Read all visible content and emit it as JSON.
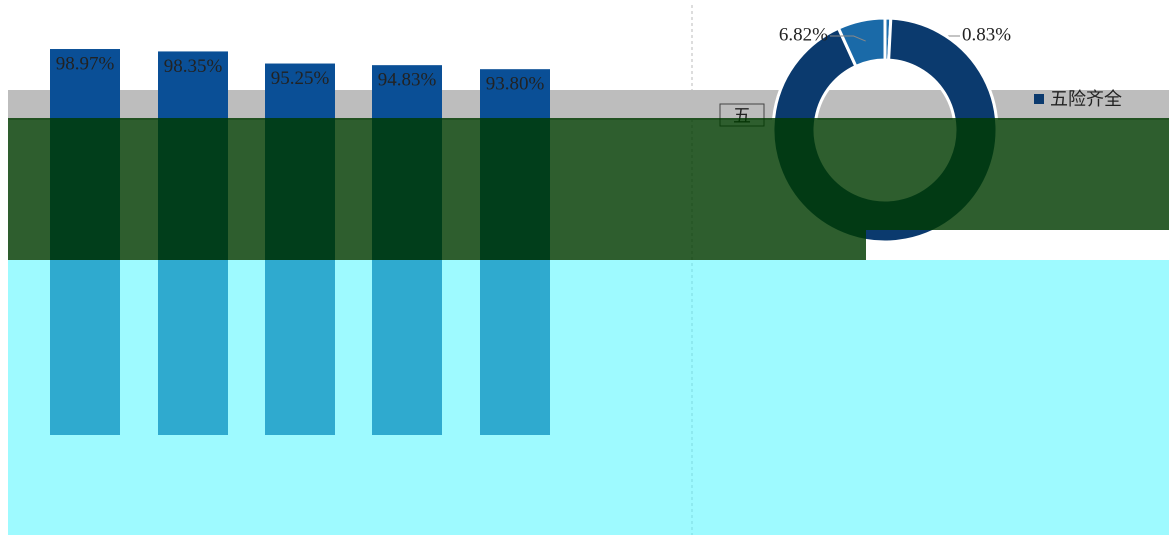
{
  "chart_data": [
    {
      "type": "bar",
      "categories": [
        null,
        null,
        null,
        null,
        null
      ],
      "values": [
        98.97,
        98.35,
        95.25,
        94.83,
        93.8
      ],
      "value_labels": [
        "98.97%",
        "98.35%",
        "95.25%",
        "94.83%",
        "93.80%"
      ],
      "color": "#0a4f96",
      "ylim": [
        0,
        100
      ]
    },
    {
      "type": "donut",
      "categories": [
        null,
        "五险齐全",
        null
      ],
      "values": [
        0.83,
        92.35,
        6.82
      ],
      "value_labels": [
        "0.83%",
        null,
        "6.82%"
      ],
      "colors": [
        "#1f6fae",
        "#0b3a6e",
        "#1a6aa8"
      ],
      "partial_legend_text": "五"
    }
  ]
}
